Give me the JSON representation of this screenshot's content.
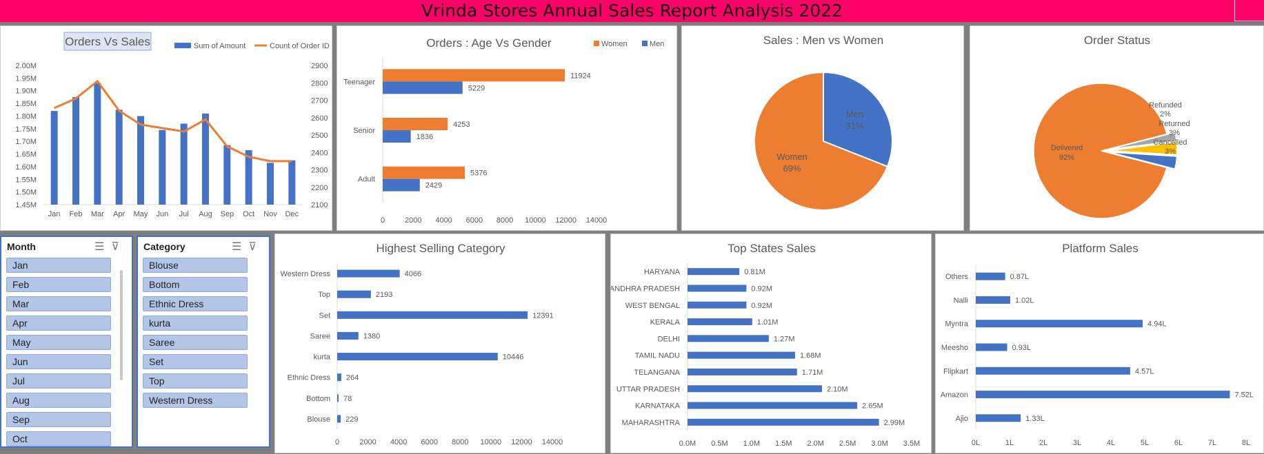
{
  "header": {
    "title": "Vrinda Stores Annual Sales Report Analysis 2022"
  },
  "colors": {
    "blue": "#4472c4",
    "orange": "#ed7d31",
    "grey": "#a5a5a5",
    "yellow": "#ffc000",
    "header": "#ff0066"
  },
  "chart_data": [
    {
      "id": "orders_vs_sales",
      "type": "bar",
      "title": "Orders  Vs Sales",
      "categories": [
        "Jan",
        "Feb",
        "Mar",
        "Apr",
        "May",
        "Jun",
        "Jul",
        "Aug",
        "Sep",
        "Oct",
        "Nov",
        "Dec"
      ],
      "series": [
        {
          "name": "Sum of Amount",
          "values": [
            1.82,
            1.875,
            1.93,
            1.825,
            1.8,
            1.745,
            1.77,
            1.81,
            1.685,
            1.665,
            1.615,
            1.625
          ]
        },
        {
          "name": "Count of Order ID",
          "values": [
            2655,
            2710,
            2810,
            2640,
            2560,
            2540,
            2520,
            2590,
            2435,
            2375,
            2350,
            2350
          ]
        }
      ],
      "left_ticks": [
        "1.45M",
        "1.50M",
        "1.55M",
        "1.60M",
        "1.65M",
        "1.70M",
        "1.75M",
        "1.80M",
        "1.85M",
        "1.90M",
        "1.95M",
        "2.00M"
      ],
      "right_ticks": [
        "2100",
        "2200",
        "2300",
        "2400",
        "2500",
        "2600",
        "2700",
        "2800",
        "2900"
      ],
      "ylim_left": [
        1.45,
        2.0
      ],
      "ylim_right": [
        2100,
        2900
      ]
    },
    {
      "id": "age_vs_gender",
      "type": "bar",
      "title": "Orders : Age Vs Gender",
      "categories": [
        "Teenager",
        "Senior",
        "Adult"
      ],
      "series": [
        {
          "name": "Women",
          "values": [
            11924,
            4253,
            5376
          ]
        },
        {
          "name": "Men",
          "values": [
            5229,
            1836,
            2429
          ]
        }
      ],
      "x_ticks": [
        "0",
        "2000",
        "4000",
        "6000",
        "8000",
        "10000",
        "12000",
        "14000"
      ],
      "xlim": [
        0,
        14000
      ]
    },
    {
      "id": "men_vs_women",
      "type": "pie",
      "title": "Sales : Men vs Women",
      "slices": [
        {
          "label": "Men",
          "pct": "31%",
          "value": 31
        },
        {
          "label": "Women",
          "pct": "69%",
          "value": 69
        }
      ]
    },
    {
      "id": "order_status",
      "type": "pie",
      "title": "Order Status",
      "slices": [
        {
          "label": "Delivered",
          "pct": "92%",
          "value": 92
        },
        {
          "label": "Refunded",
          "pct": "2%",
          "value": 2
        },
        {
          "label": "Returned",
          "pct": "3%",
          "value": 3
        },
        {
          "label": "Cancelled",
          "pct": "3%",
          "value": 3
        }
      ]
    },
    {
      "id": "highest_category",
      "type": "bar",
      "title": "Highest Selling Category",
      "categories": [
        "Western Dress",
        "Top",
        "Set",
        "Saree",
        "kurta",
        "Ethnic Dress",
        "Bottom",
        "Blouse"
      ],
      "values": [
        4066,
        2193,
        12391,
        1380,
        10446,
        264,
        78,
        229
      ],
      "labels": [
        "4066",
        "2193",
        "12391",
        "1380",
        "10446",
        "264",
        "78",
        "229"
      ],
      "x_ticks": [
        "0",
        "2000",
        "4000",
        "6000",
        "8000",
        "10000",
        "12000",
        "14000"
      ],
      "xlim": [
        0,
        14000
      ]
    },
    {
      "id": "top_states",
      "type": "bar",
      "title": "Top States Sales",
      "categories": [
        "HARYANA",
        "ANDHRA PRADESH",
        "WEST BENGAL",
        "KERALA",
        "DELHI",
        "TAMIL NADU",
        "TELANGANA",
        "UTTAR PRADESH",
        "KARNATAKA",
        "MAHARASHTRA"
      ],
      "values": [
        0.81,
        0.92,
        0.92,
        1.01,
        1.27,
        1.68,
        1.71,
        2.1,
        2.65,
        2.99
      ],
      "labels": [
        "0.81M",
        "0.92M",
        "0.92M",
        "1.01M",
        "1.27M",
        "1.68M",
        "1.71M",
        "2.10M",
        "2.65M",
        "2.99M"
      ],
      "x_ticks": [
        "0.0M",
        "0.5M",
        "1.0M",
        "1.5M",
        "2.0M",
        "2.5M",
        "3.0M",
        "3.5M"
      ],
      "xlim": [
        0,
        3.5
      ]
    },
    {
      "id": "platform_sales",
      "type": "bar",
      "title": "Platform Sales",
      "categories": [
        "Others",
        "Nalli",
        "Myntra",
        "Meesho",
        "Flipkart",
        "Amazon",
        "Ajio"
      ],
      "values": [
        0.87,
        1.02,
        4.94,
        0.93,
        4.57,
        7.52,
        1.33
      ],
      "labels": [
        "0.87L",
        "1.02L",
        "4.94L",
        "0.93L",
        "4.57L",
        "7.52L",
        "1.33L"
      ],
      "x_ticks": [
        "0L",
        "1L",
        "2L",
        "3L",
        "4L",
        "5L",
        "6L",
        "7L",
        "8L"
      ],
      "xlim": [
        0,
        8
      ]
    }
  ],
  "slicers": {
    "month": {
      "title": "Month",
      "items": [
        "Jan",
        "Feb",
        "Mar",
        "Apr",
        "May",
        "Jun",
        "Jul",
        "Aug",
        "Sep",
        "Oct"
      ]
    },
    "category": {
      "title": "Category",
      "items": [
        "Blouse",
        "Bottom",
        "Ethnic Dress",
        "kurta",
        "Saree",
        "Set",
        "Top",
        "Western Dress"
      ]
    }
  }
}
